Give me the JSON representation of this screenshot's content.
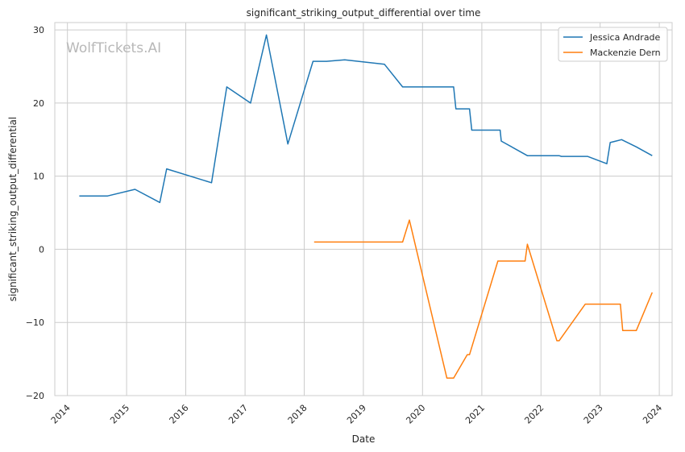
{
  "watermark": "WolfTickets.AI",
  "chart_data": {
    "type": "line",
    "title": "significant_striking_output_differential over time",
    "xlabel": "Date",
    "ylabel": "significant_striking_output_differential",
    "xlim": [
      "2013-10-15",
      "2024-03-20"
    ],
    "ylim": [
      -20,
      31
    ],
    "yticks": [
      -20,
      -10,
      0,
      10,
      20,
      30
    ],
    "ytick_labels": [
      "−20",
      "−10",
      "0",
      "10",
      "20",
      "30"
    ],
    "xticks": [
      "2014-01-01",
      "2015-01-01",
      "2016-01-01",
      "2017-01-01",
      "2018-01-01",
      "2019-01-01",
      "2020-01-01",
      "2021-01-01",
      "2022-01-01",
      "2023-01-01",
      "2024-01-01"
    ],
    "xtick_labels": [
      "2014",
      "2015",
      "2016",
      "2017",
      "2018",
      "2019",
      "2020",
      "2021",
      "2022",
      "2023",
      "2024"
    ],
    "grid": true,
    "legend": "top-right",
    "series": [
      {
        "name": "Jessica Andrade",
        "color": "#1f77b4",
        "points": [
          [
            "2014-03-15",
            7.3
          ],
          [
            "2014-09-06",
            7.3
          ],
          [
            "2015-02-22",
            8.2
          ],
          [
            "2015-07-25",
            6.4
          ],
          [
            "2015-09-05",
            11.0
          ],
          [
            "2016-06-08",
            9.1
          ],
          [
            "2016-09-10",
            22.2
          ],
          [
            "2017-02-04",
            20.0
          ],
          [
            "2017-05-13",
            29.3
          ],
          [
            "2017-09-22",
            14.4
          ],
          [
            "2018-02-24",
            25.7
          ],
          [
            "2018-05-19",
            25.7
          ],
          [
            "2018-09-08",
            25.9
          ],
          [
            "2019-05-11",
            25.3
          ],
          [
            "2019-08-31",
            22.2
          ],
          [
            "2020-03-07",
            22.2
          ],
          [
            "2020-07-11",
            22.2
          ],
          [
            "2020-07-25",
            19.2
          ],
          [
            "2020-10-17",
            19.2
          ],
          [
            "2020-10-31",
            16.3
          ],
          [
            "2021-04-24",
            16.3
          ],
          [
            "2021-05-01",
            14.8
          ],
          [
            "2021-10-09",
            12.8
          ],
          [
            "2022-04-23",
            12.8
          ],
          [
            "2022-05-07",
            12.7
          ],
          [
            "2022-10-15",
            12.7
          ],
          [
            "2023-02-11",
            11.7
          ],
          [
            "2023-03-04",
            14.6
          ],
          [
            "2023-05-13",
            15.0
          ],
          [
            "2023-08-12",
            14.0
          ],
          [
            "2023-11-18",
            12.8
          ]
        ]
      },
      {
        "name": "Mackenzie Dern",
        "color": "#ff7f0e",
        "points": [
          [
            "2018-03-03",
            1.0
          ],
          [
            "2018-05-19",
            1.0
          ],
          [
            "2019-08-31",
            1.0
          ],
          [
            "2019-10-12",
            4.0
          ],
          [
            "2020-05-30",
            -17.6
          ],
          [
            "2020-07-11",
            -17.6
          ],
          [
            "2020-10-03",
            -14.4
          ],
          [
            "2020-10-17",
            -14.4
          ],
          [
            "2021-04-10",
            -1.6
          ],
          [
            "2021-09-25",
            -1.6
          ],
          [
            "2021-10-09",
            0.7
          ],
          [
            "2022-04-09",
            -12.5
          ],
          [
            "2022-04-23",
            -12.5
          ],
          [
            "2022-10-01",
            -7.5
          ],
          [
            "2023-05-06",
            -7.5
          ],
          [
            "2023-05-20",
            -11.1
          ],
          [
            "2023-08-12",
            -11.1
          ],
          [
            "2023-11-18",
            -5.9
          ]
        ]
      }
    ]
  }
}
